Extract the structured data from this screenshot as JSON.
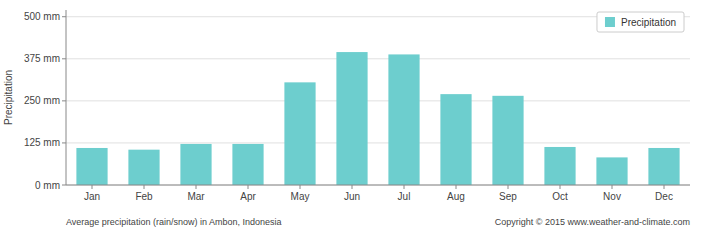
{
  "chart_data": {
    "type": "bar",
    "ylabel": "Precipitation",
    "categories": [
      "Jan",
      "Feb",
      "Mar",
      "Apr",
      "May",
      "Jun",
      "Jul",
      "Aug",
      "Sep",
      "Oct",
      "Nov",
      "Dec"
    ],
    "series": [
      {
        "name": "Precipitation",
        "color": "#6dcece",
        "values": [
          110,
          105,
          122,
          122,
          305,
          395,
          388,
          270,
          265,
          113,
          82,
          110
        ]
      }
    ],
    "ylim": [
      0,
      520
    ],
    "yticks": [
      {
        "value": 0,
        "label": "0 mm"
      },
      {
        "value": 125,
        "label": "125 mm"
      },
      {
        "value": 250,
        "label": "250 mm"
      },
      {
        "value": 375,
        "label": "375 mm"
      },
      {
        "value": 500,
        "label": "500 mm"
      }
    ],
    "grid": true,
    "legend": "upper right",
    "annotations": [
      "Average precipitation (rain/snow) in Ambon, Indonesia",
      "Copyright © 2015 www.weather-and-climate.com"
    ]
  }
}
